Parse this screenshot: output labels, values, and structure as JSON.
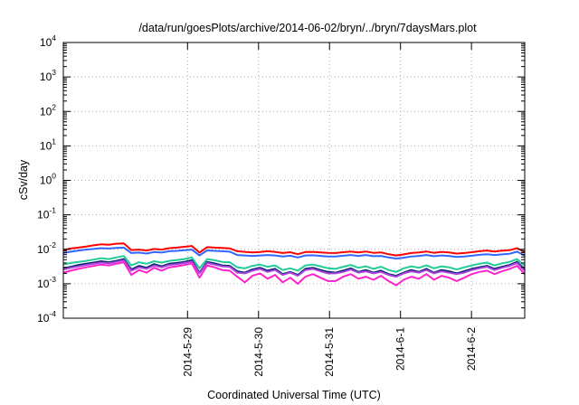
{
  "chart_data": {
    "type": "line",
    "title": "/data/run/goesPlots/archive/2014-06-02/bryn/../bryn/7daysMars.plot",
    "xlabel": "Coordinated Universal Time (UTC)",
    "ylabel": "cSv/day",
    "x_tick_labels": [
      "2014-5-29",
      "2014-5-30",
      "2014-5-31",
      "2014-6-1",
      "2014-6-2"
    ],
    "x_tick_positions_days": [
      1.0,
      2.0,
      3.0,
      4.0,
      5.0
    ],
    "x_range_days": [
      -0.75,
      5.75
    ],
    "y_scale": "log",
    "ylim": [
      0.0001,
      10000
    ],
    "y_ticks": [
      {
        "base": "10",
        "exp": "-4"
      },
      {
        "base": "10",
        "exp": "-3"
      },
      {
        "base": "10",
        "exp": "-2"
      },
      {
        "base": "10",
        "exp": "-1"
      },
      {
        "base": "10",
        "exp": "0"
      },
      {
        "base": "10",
        "exp": "1"
      },
      {
        "base": "10",
        "exp": "2"
      },
      {
        "base": "10",
        "exp": "3"
      },
      {
        "base": "10",
        "exp": "4"
      }
    ],
    "grid": true,
    "legend": "none",
    "series": [
      {
        "color": "#ff0000",
        "values": [
          0.0095,
          0.0105,
          0.0112,
          0.012,
          0.013,
          0.014,
          0.0135,
          0.0145,
          0.0148,
          0.0095,
          0.0098,
          0.0092,
          0.0102,
          0.0098,
          0.0108,
          0.0112,
          0.0118,
          0.0125,
          0.008,
          0.0115,
          0.0112,
          0.011,
          0.0106,
          0.0088,
          0.0084,
          0.0081,
          0.0083,
          0.0088,
          0.0084,
          0.0078,
          0.0082,
          0.0072,
          0.0083,
          0.0084,
          0.0081,
          0.0079,
          0.0078,
          0.0082,
          0.0086,
          0.0081,
          0.0086,
          0.0079,
          0.0081,
          0.0072,
          0.0066,
          0.0071,
          0.0078,
          0.0081,
          0.0086,
          0.0079,
          0.0084,
          0.0081,
          0.0075,
          0.0078,
          0.0082,
          0.0088,
          0.0092,
          0.0086,
          0.0091,
          0.0094,
          0.0108,
          0.0082
        ]
      },
      {
        "color": "#3366ff",
        "values": [
          0.0078,
          0.0085,
          0.0092,
          0.0098,
          0.0102,
          0.0108,
          0.0105,
          0.011,
          0.0112,
          0.0078,
          0.008,
          0.0075,
          0.0083,
          0.008,
          0.0088,
          0.009,
          0.0094,
          0.0098,
          0.0066,
          0.0093,
          0.009,
          0.0088,
          0.0085,
          0.0068,
          0.0066,
          0.0064,
          0.0066,
          0.0068,
          0.0066,
          0.0062,
          0.0065,
          0.0058,
          0.0066,
          0.0067,
          0.0064,
          0.0062,
          0.0062,
          0.0065,
          0.0068,
          0.0064,
          0.0068,
          0.0063,
          0.0064,
          0.0058,
          0.0054,
          0.0057,
          0.0062,
          0.0064,
          0.0068,
          0.0063,
          0.0066,
          0.0064,
          0.006,
          0.0062,
          0.0065,
          0.0069,
          0.0072,
          0.0068,
          0.0071,
          0.0074,
          0.0085,
          0.0066
        ]
      },
      {
        "color": "#22cc99",
        "values": [
          0.0036,
          0.004,
          0.0043,
          0.0046,
          0.005,
          0.0055,
          0.0052,
          0.0058,
          0.0064,
          0.0034,
          0.0042,
          0.0038,
          0.0045,
          0.0041,
          0.0046,
          0.0049,
          0.0052,
          0.0058,
          0.0028,
          0.0052,
          0.0048,
          0.0043,
          0.0042,
          0.003,
          0.0028,
          0.0033,
          0.0036,
          0.0031,
          0.0034,
          0.0025,
          0.0028,
          0.0024,
          0.0034,
          0.0036,
          0.0032,
          0.0028,
          0.0027,
          0.0031,
          0.0035,
          0.0029,
          0.0032,
          0.0027,
          0.0031,
          0.0025,
          0.0022,
          0.0028,
          0.0032,
          0.0029,
          0.0034,
          0.0028,
          0.0032,
          0.003,
          0.0026,
          0.003,
          0.0034,
          0.0038,
          0.0041,
          0.0034,
          0.0039,
          0.0043,
          0.0052,
          0.0033
        ]
      },
      {
        "color": "#002266",
        "values": [
          0.0028,
          0.0031,
          0.0035,
          0.0038,
          0.0041,
          0.0045,
          0.0042,
          0.0046,
          0.0052,
          0.0026,
          0.0033,
          0.0029,
          0.0037,
          0.0032,
          0.0038,
          0.004,
          0.0043,
          0.0048,
          0.0021,
          0.0043,
          0.0039,
          0.0034,
          0.0033,
          0.0023,
          0.0021,
          0.0026,
          0.0029,
          0.0024,
          0.0027,
          0.0019,
          0.0022,
          0.0018,
          0.0027,
          0.0029,
          0.0025,
          0.0022,
          0.0021,
          0.0024,
          0.0028,
          0.0022,
          0.0025,
          0.0021,
          0.0024,
          0.0019,
          0.0017,
          0.0021,
          0.0025,
          0.0022,
          0.0027,
          0.0021,
          0.0025,
          0.0023,
          0.002,
          0.0023,
          0.0027,
          0.003,
          0.0033,
          0.0027,
          0.0031,
          0.0035,
          0.0043,
          0.0026
        ]
      },
      {
        "color": "#aa44dd",
        "values": [
          0.0026,
          0.0029,
          0.0032,
          0.0035,
          0.0038,
          0.0041,
          0.0039,
          0.0043,
          0.0048,
          0.0024,
          0.003,
          0.0027,
          0.0034,
          0.003,
          0.0035,
          0.0037,
          0.004,
          0.0044,
          0.002,
          0.004,
          0.0036,
          0.0032,
          0.0031,
          0.0021,
          0.002,
          0.0024,
          0.0027,
          0.0022,
          0.0025,
          0.0018,
          0.0021,
          0.0017,
          0.0025,
          0.0027,
          0.0023,
          0.002,
          0.002,
          0.0022,
          0.0026,
          0.0021,
          0.0023,
          0.002,
          0.0022,
          0.0018,
          0.0016,
          0.002,
          0.0023,
          0.0021,
          0.0025,
          0.002,
          0.0023,
          0.0021,
          0.0019,
          0.0021,
          0.0025,
          0.0028,
          0.0031,
          0.0025,
          0.0029,
          0.0033,
          0.004,
          0.0024
        ]
      },
      {
        "color": "#ff22cc",
        "values": [
          0.0021,
          0.0024,
          0.0027,
          0.003,
          0.0033,
          0.0036,
          0.0034,
          0.0038,
          0.0042,
          0.0018,
          0.0025,
          0.0021,
          0.0029,
          0.0024,
          0.003,
          0.0032,
          0.0035,
          0.0039,
          0.0015,
          0.0034,
          0.003,
          0.0025,
          0.0024,
          0.0016,
          0.0011,
          0.0017,
          0.002,
          0.0014,
          0.0018,
          0.0011,
          0.0015,
          0.001,
          0.0016,
          0.0019,
          0.0015,
          0.0012,
          0.0012,
          0.0016,
          0.0019,
          0.0014,
          0.0016,
          0.0013,
          0.0017,
          0.0012,
          0.0009,
          0.0013,
          0.0016,
          0.0014,
          0.0019,
          0.0013,
          0.0017,
          0.0015,
          0.0012,
          0.0015,
          0.0019,
          0.0022,
          0.0024,
          0.0019,
          0.0023,
          0.0027,
          0.0033,
          0.0019
        ]
      }
    ]
  }
}
